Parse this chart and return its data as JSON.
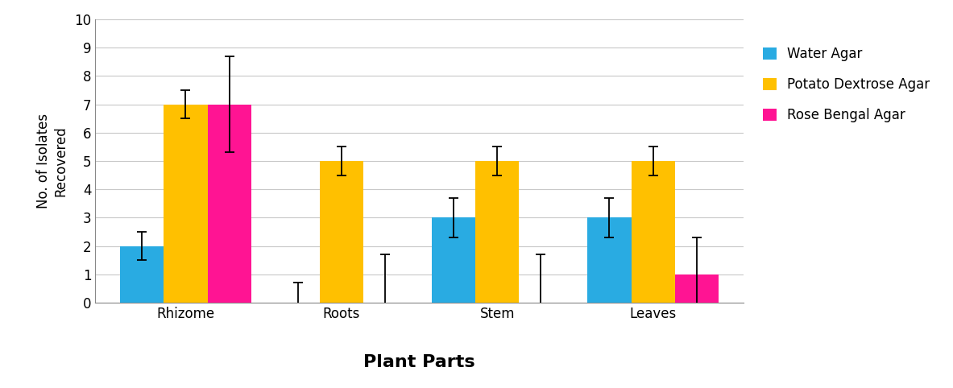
{
  "categories": [
    "Rhizome",
    "Roots",
    "Stem",
    "Leaves"
  ],
  "series": [
    {
      "label": "Water Agar",
      "color": "#29ABE2",
      "values": [
        2,
        0,
        3,
        3
      ],
      "errors": [
        0.5,
        0.7,
        0.7,
        0.7
      ]
    },
    {
      "label": "Potato Dextrose Agar",
      "color": "#FFC000",
      "values": [
        7,
        5,
        5,
        5
      ],
      "errors": [
        0.5,
        0.5,
        0.5,
        0.5
      ]
    },
    {
      "label": "Rose Bengal Agar",
      "color": "#FF1493",
      "values": [
        7,
        0,
        0,
        1
      ],
      "errors": [
        1.7,
        1.7,
        1.7,
        1.3
      ]
    }
  ],
  "ylabel": "No. of Isolates\nRecovered",
  "xlabel": "Plant Parts",
  "ylim": [
    0,
    10
  ],
  "yticks": [
    0,
    1,
    2,
    3,
    4,
    5,
    6,
    7,
    8,
    9,
    10
  ],
  "bar_width": 0.28,
  "background_color": "#FFFFFF",
  "grid_color": "#C8C8C8",
  "xlabel_fontsize": 16,
  "ylabel_fontsize": 12,
  "tick_fontsize": 12,
  "legend_fontsize": 12,
  "capsize": 4,
  "figwidth": 11.83,
  "figheight": 4.82,
  "dpi": 100
}
